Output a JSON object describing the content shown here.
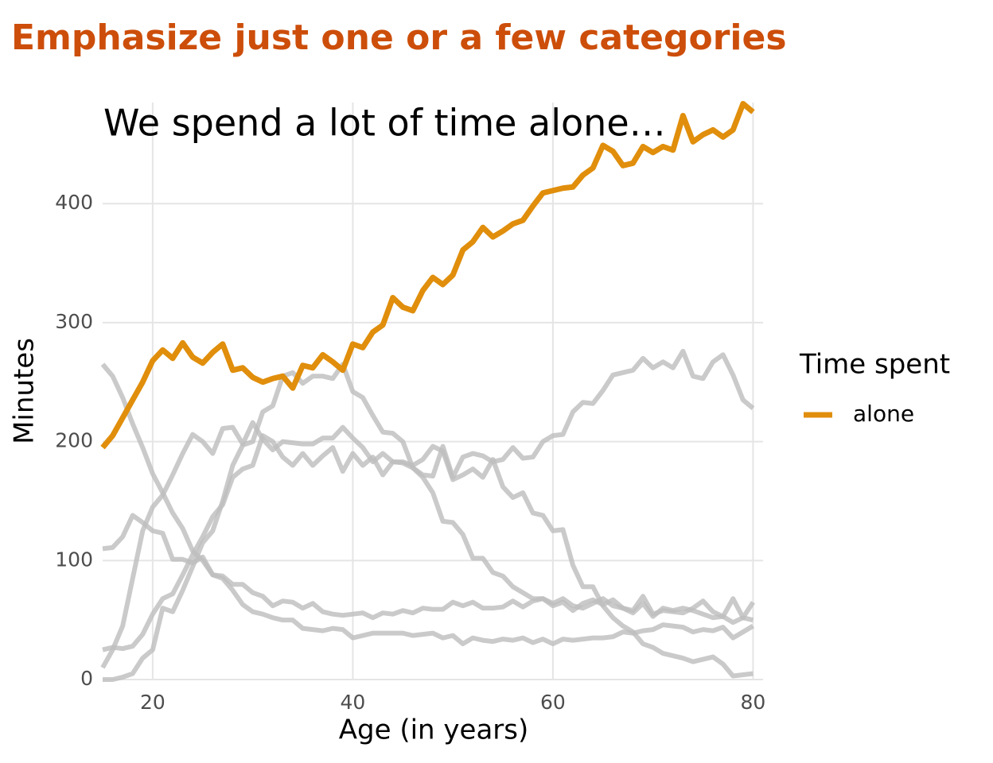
{
  "chart_data": {
    "type": "line",
    "title": "Emphasize just one or a few categories",
    "annotation": "We spend a lot of time alone…",
    "x_label": "Age (in years)",
    "y_label": "Minutes",
    "legend_title": "Time spent",
    "legend": "right",
    "grid": true,
    "xlim": [
      15,
      81
    ],
    "ylim": [
      0,
      485
    ],
    "xticks": [
      20,
      40,
      60,
      80
    ],
    "yticks": [
      0,
      100,
      200,
      300,
      400
    ],
    "x": [
      15,
      16,
      17,
      18,
      19,
      20,
      21,
      22,
      23,
      24,
      25,
      26,
      27,
      28,
      29,
      30,
      31,
      32,
      33,
      34,
      35,
      36,
      37,
      38,
      39,
      40,
      41,
      42,
      43,
      44,
      45,
      46,
      47,
      48,
      49,
      50,
      51,
      52,
      53,
      54,
      55,
      56,
      57,
      58,
      59,
      60,
      61,
      62,
      63,
      64,
      65,
      66,
      67,
      68,
      69,
      70,
      71,
      72,
      73,
      74,
      75,
      76,
      77,
      78,
      79,
      80
    ],
    "series": [
      {
        "color": "#bdbdbd",
        "values": [
          265,
          255,
          237,
          215,
          195,
          173,
          157,
          140,
          127,
          108,
          100,
          88,
          85,
          75,
          63,
          57,
          55,
          52,
          50,
          50,
          43,
          42,
          41,
          43,
          42,
          35,
          37,
          39,
          39,
          39,
          39,
          37,
          38,
          39,
          35,
          37,
          30,
          35,
          33,
          32,
          34,
          33,
          35,
          31,
          34,
          30,
          34,
          33,
          34,
          35,
          35,
          36,
          40,
          39,
          41,
          42,
          46,
          45,
          44,
          40,
          42,
          41,
          44,
          35,
          40,
          45
        ]
      },
      {
        "color": "#bdbdbd",
        "values": [
          110,
          111,
          120,
          138,
          132,
          125,
          123,
          101,
          101,
          98,
          103,
          88,
          87,
          80,
          80,
          73,
          70,
          62,
          66,
          65,
          60,
          64,
          57,
          55,
          54,
          55,
          56,
          52,
          56,
          55,
          58,
          56,
          60,
          59,
          59,
          65,
          62,
          65,
          60,
          60,
          61,
          66,
          61,
          66,
          68,
          64,
          68,
          62,
          60,
          64,
          68,
          62,
          60,
          58,
          70,
          55,
          58,
          57,
          56,
          60,
          66,
          57,
          53,
          68,
          52,
          65
        ]
      },
      {
        "color": "#bdbdbd",
        "values": [
          10,
          25,
          45,
          85,
          125,
          145,
          155,
          172,
          190,
          206,
          200,
          190,
          211,
          212,
          198,
          216,
          202,
          193,
          200,
          199,
          198,
          198,
          203,
          203,
          212,
          203,
          195,
          183,
          190,
          183,
          183,
          180,
          185,
          196,
          192,
          168,
          172,
          177,
          170,
          185,
          162,
          153,
          157,
          140,
          138,
          125,
          126,
          96,
          78,
          78,
          62,
          52,
          45,
          40,
          30,
          27,
          22,
          20,
          18,
          15,
          17,
          19,
          13,
          3,
          4,
          5
        ]
      },
      {
        "color": "#bdbdbd",
        "values": [
          25,
          27,
          26,
          28,
          38,
          55,
          68,
          72,
          88,
          105,
          120,
          137,
          147,
          170,
          177,
          180,
          205,
          200,
          187,
          180,
          190,
          180,
          188,
          195,
          175,
          190,
          180,
          187,
          172,
          183,
          182,
          178,
          172,
          171,
          196,
          170,
          187,
          190,
          188,
          183,
          185,
          195,
          186,
          187,
          200,
          205,
          206,
          225,
          233,
          232,
          243,
          256,
          258,
          260,
          270,
          262,
          267,
          262,
          276,
          255,
          253,
          267,
          273,
          256,
          235,
          228
        ]
      },
      {
        "color": "#bdbdbd",
        "values": [
          0,
          0,
          2,
          5,
          18,
          25,
          60,
          57,
          75,
          95,
          115,
          125,
          150,
          180,
          197,
          200,
          225,
          230,
          255,
          258,
          249,
          255,
          255,
          253,
          265,
          242,
          237,
          222,
          208,
          207,
          200,
          178,
          170,
          157,
          133,
          132,
          122,
          102,
          102,
          90,
          87,
          78,
          73,
          68,
          68,
          62,
          65,
          58,
          64,
          67,
          63,
          67,
          60,
          56,
          64,
          53,
          60,
          58,
          60,
          58,
          55,
          52,
          53,
          48,
          52,
          50
        ]
      },
      {
        "name": "alone",
        "color": "#e08e0b",
        "values": [
          195,
          205,
          220,
          235,
          250,
          268,
          277,
          270,
          283,
          271,
          266,
          275,
          282,
          260,
          262,
          254,
          250,
          253,
          255,
          245,
          264,
          262,
          273,
          267,
          260,
          282,
          279,
          292,
          298,
          321,
          313,
          310,
          327,
          338,
          332,
          340,
          361,
          368,
          380,
          372,
          377,
          383,
          386,
          398,
          409,
          411,
          413,
          414,
          424,
          430,
          449,
          444,
          432,
          434,
          448,
          443,
          448,
          445,
          474,
          452,
          458,
          462,
          456,
          462,
          484,
          477
        ]
      }
    ]
  }
}
